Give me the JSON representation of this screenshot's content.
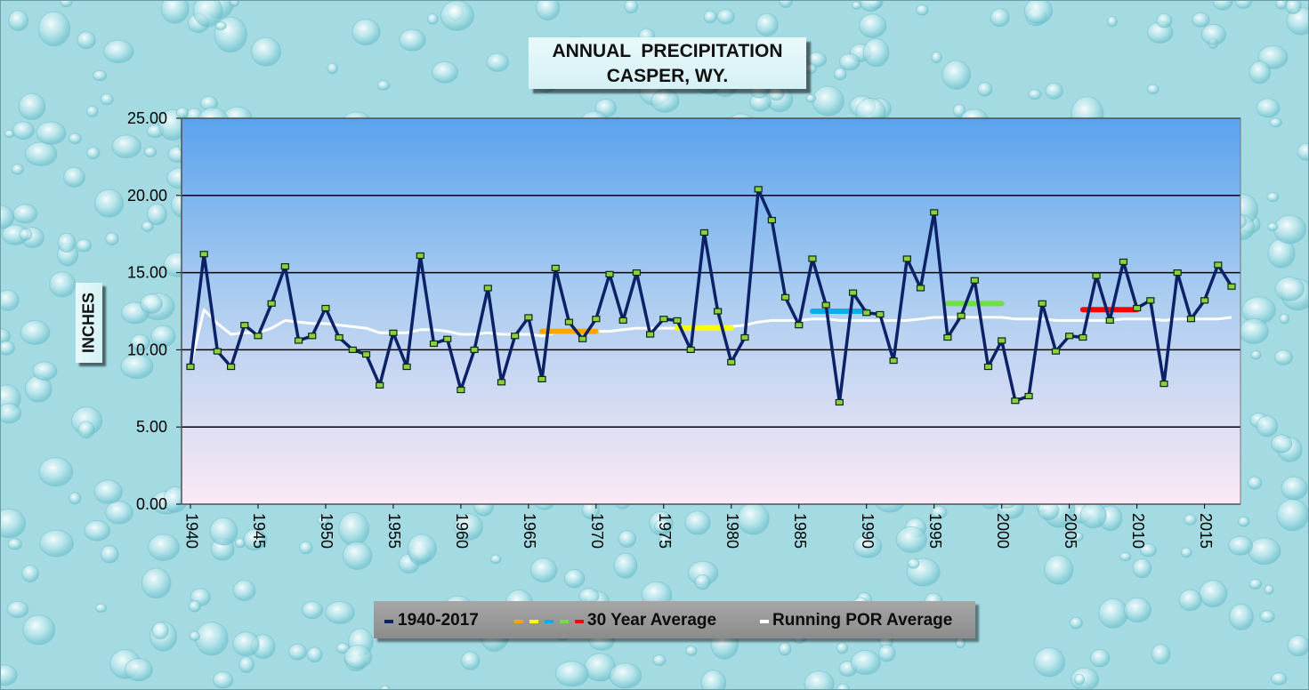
{
  "chart_data": {
    "type": "line",
    "title_line1": "ANNUAL  PRECIPITATION",
    "title_line2": "CASPER, WY.",
    "ylabel": "INCHES",
    "xlabel": "",
    "ylim": [
      0,
      25
    ],
    "yticks": [
      0,
      5,
      10,
      15,
      20,
      25
    ],
    "ytick_labels": [
      "0.00",
      "5.00",
      "10.00",
      "15.00",
      "20.00",
      "25.00"
    ],
    "xlim": [
      1940,
      2017
    ],
    "xtick_labels": [
      "1940",
      "1945",
      "1950",
      "1955",
      "1960",
      "1965",
      "1970",
      "1975",
      "1980",
      "1985",
      "1990",
      "1995",
      "2000",
      "2005",
      "2010",
      "2015"
    ],
    "grid": true,
    "legend_position": "bottom",
    "colors": {
      "annual": "#0c2166",
      "running": "#ffffff",
      "markers": "#8cd040",
      "avg1961": "#ffa500",
      "avg1971": "#ffff00",
      "avg1981": "#00b0f0",
      "avg1991": "#70e040",
      "avg2001": "#ff0000",
      "plot_top": "#5aa2ee",
      "plot_bottom": "#fbe9f6"
    },
    "series": [
      {
        "name": "1940-2017",
        "x": [
          1940,
          1941,
          1942,
          1943,
          1944,
          1945,
          1946,
          1947,
          1948,
          1949,
          1950,
          1951,
          1952,
          1953,
          1954,
          1955,
          1956,
          1957,
          1958,
          1959,
          1960,
          1961,
          1962,
          1963,
          1964,
          1965,
          1966,
          1967,
          1968,
          1969,
          1970,
          1971,
          1972,
          1973,
          1974,
          1975,
          1976,
          1977,
          1978,
          1979,
          1980,
          1981,
          1982,
          1983,
          1984,
          1985,
          1986,
          1987,
          1988,
          1989,
          1990,
          1991,
          1992,
          1993,
          1994,
          1995,
          1996,
          1997,
          1998,
          1999,
          2000,
          2001,
          2002,
          2003,
          2004,
          2005,
          2006,
          2007,
          2008,
          2009,
          2010,
          2011,
          2012,
          2013,
          2014,
          2015,
          2016,
          2017
        ],
        "values": [
          8.9,
          16.2,
          9.9,
          8.9,
          11.6,
          10.9,
          13.0,
          15.4,
          10.6,
          10.9,
          12.7,
          10.8,
          10.0,
          9.7,
          7.7,
          11.1,
          8.9,
          16.1,
          10.4,
          10.7,
          7.4,
          10.0,
          14.0,
          7.9,
          10.9,
          12.1,
          8.1,
          15.3,
          11.8,
          10.7,
          12.0,
          14.9,
          11.9,
          15.0,
          11.0,
          12.0,
          11.9,
          10.0,
          17.6,
          12.5,
          9.2,
          10.8,
          20.4,
          18.4,
          13.4,
          11.6,
          15.9,
          12.9,
          6.6,
          13.7,
          12.4,
          12.3,
          9.3,
          15.9,
          14.0,
          18.9,
          10.8,
          12.2,
          14.5,
          8.9,
          10.6,
          6.7,
          7.0,
          13.0,
          9.9,
          10.9,
          10.8,
          14.8,
          11.9,
          15.7,
          12.7,
          13.2,
          7.8,
          15.0,
          12.0,
          13.2,
          15.5,
          14.1
        ]
      },
      {
        "name": "30 Year Average",
        "segments": [
          {
            "x": [
              1966,
              1970
            ],
            "value": 11.2
          },
          {
            "x": [
              1976,
              1980
            ],
            "value": 11.4
          },
          {
            "x": [
              1986,
              1990
            ],
            "value": 12.5
          },
          {
            "x": [
              1996,
              2000
            ],
            "value": 13.0
          },
          {
            "x": [
              2006,
              2010
            ],
            "value": 12.6
          }
        ]
      },
      {
        "name": "Running POR Average",
        "x": [
          1940,
          1941,
          1942,
          1943,
          1944,
          1945,
          1946,
          1947,
          1948,
          1949,
          1950,
          1951,
          1952,
          1953,
          1954,
          1955,
          1956,
          1957,
          1958,
          1959,
          1960,
          1961,
          1962,
          1963,
          1964,
          1965,
          1966,
          1967,
          1968,
          1969,
          1970,
          1971,
          1972,
          1973,
          1974,
          1975,
          1976,
          1977,
          1978,
          1979,
          1980,
          1981,
          1982,
          1983,
          1984,
          1985,
          1986,
          1987,
          1988,
          1989,
          1990,
          1991,
          1992,
          1993,
          1994,
          1995,
          1996,
          1997,
          1998,
          1999,
          2000,
          2001,
          2002,
          2003,
          2004,
          2005,
          2006,
          2007,
          2008,
          2009,
          2010,
          2011,
          2012,
          2013,
          2014,
          2015,
          2016,
          2017
        ],
        "values": [
          8.9,
          12.6,
          11.7,
          11.0,
          11.1,
          11.1,
          11.4,
          11.9,
          11.8,
          11.7,
          11.7,
          11.6,
          11.5,
          11.4,
          11.1,
          11.1,
          11.1,
          11.3,
          11.3,
          11.2,
          11.0,
          11.0,
          11.1,
          11.0,
          11.0,
          11.0,
          10.9,
          11.1,
          11.1,
          11.1,
          11.2,
          11.2,
          11.3,
          11.4,
          11.4,
          11.4,
          11.4,
          11.4,
          11.5,
          11.5,
          11.5,
          11.6,
          11.8,
          11.9,
          11.9,
          11.9,
          12.0,
          12.0,
          11.9,
          11.9,
          11.9,
          11.9,
          11.9,
          11.9,
          12.0,
          12.1,
          12.1,
          12.1,
          12.1,
          12.1,
          12.1,
          12.0,
          12.0,
          12.0,
          11.9,
          11.9,
          11.9,
          11.9,
          11.9,
          12.0,
          12.0,
          12.0,
          11.9,
          12.0,
          12.0,
          12.0,
          12.0,
          12.1
        ]
      }
    ],
    "legend": {
      "annual_label": "1940-2017",
      "avg_label": "30 Year Average",
      "running_label": "Running POR Average"
    }
  }
}
